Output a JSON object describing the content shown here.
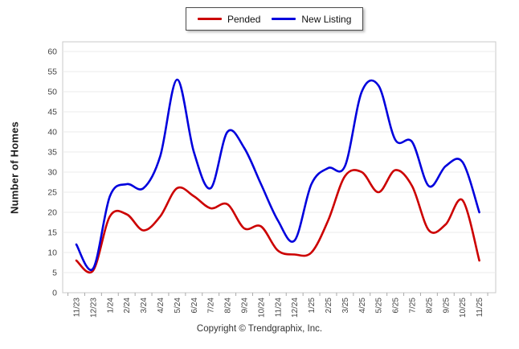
{
  "legend": {
    "items": [
      {
        "label": "Pended",
        "color": "#cc0000"
      },
      {
        "label": "New Listing",
        "color": "#0000dd"
      }
    ]
  },
  "footer": {
    "copyright": "Copyright © Trendgraphix, Inc."
  },
  "chart_data": {
    "type": "line",
    "title": "",
    "xlabel": "",
    "ylabel": "Number of Homes",
    "ylim": [
      0,
      60
    ],
    "ytick_step": 5,
    "grid": true,
    "legend_position": "top-center",
    "line_style": "smooth",
    "categories": [
      "11/23",
      "12/23",
      "1/24",
      "2/24",
      "3/24",
      "4/24",
      "5/24",
      "6/24",
      "7/24",
      "8/24",
      "9/24",
      "10/24",
      "11/24",
      "12/24",
      "1/25",
      "2/25",
      "3/25",
      "4/25",
      "5/25",
      "6/25",
      "7/25",
      "8/25",
      "9/25",
      "10/25",
      "11/25"
    ],
    "series": [
      {
        "name": "Pended",
        "color": "#cc0000",
        "values": [
          8,
          5.5,
          19,
          19.5,
          15.5,
          19,
          26,
          24,
          21,
          22,
          16,
          16.5,
          10.5,
          9.5,
          10,
          18,
          29,
          30,
          25,
          30.5,
          26.5,
          15.5,
          17,
          23,
          8
        ]
      },
      {
        "name": "New Listing",
        "color": "#0000dd",
        "values": [
          12,
          6,
          24,
          27,
          26,
          34,
          53,
          35,
          26,
          40,
          36,
          27,
          18,
          13,
          27,
          31,
          31.5,
          50,
          51.5,
          38,
          37.5,
          26.5,
          31.5,
          32.5,
          20
        ]
      }
    ],
    "colors": {
      "grid": "#ebebeb",
      "axis": "#c8c8c8",
      "tick": "#aaaaaa",
      "tick_label": "#444444"
    }
  }
}
